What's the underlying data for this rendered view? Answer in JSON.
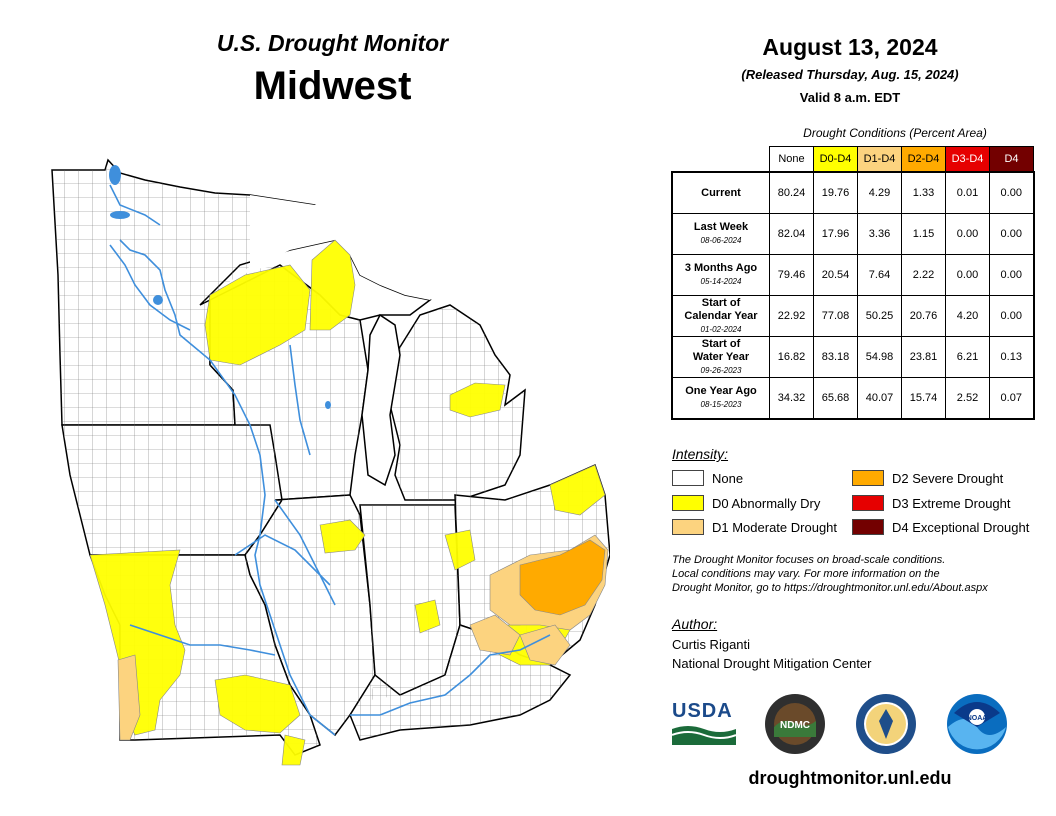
{
  "header": {
    "product": "U.S. Drought Monitor",
    "region": "Midwest",
    "date": "August 13, 2024",
    "released": "(Released Thursday, Aug. 15, 2024)",
    "valid": "Valid 8 a.m. EDT"
  },
  "table": {
    "caption": "Drought Conditions (Percent Area)",
    "columns": [
      "None",
      "D0-D4",
      "D1-D4",
      "D2-D4",
      "D3-D4",
      "D4"
    ],
    "column_colors": [
      "#ffffff",
      "#ffff00",
      "#fcd37f",
      "#ffaa00",
      "#e60000",
      "#730000"
    ],
    "rows": [
      {
        "label": "Current",
        "date": "",
        "values": [
          "80.24",
          "19.76",
          "4.29",
          "1.33",
          "0.01",
          "0.00"
        ]
      },
      {
        "label": "Last Week",
        "date": "08-06-2024",
        "values": [
          "82.04",
          "17.96",
          "3.36",
          "1.15",
          "0.00",
          "0.00"
        ]
      },
      {
        "label": "3 Months Ago",
        "date": "05-14-2024",
        "values": [
          "79.46",
          "20.54",
          "7.64",
          "2.22",
          "0.00",
          "0.00"
        ]
      },
      {
        "label1": "Start of",
        "label": "Calendar Year",
        "date": "01-02-2024",
        "values": [
          "22.92",
          "77.08",
          "50.25",
          "20.76",
          "4.20",
          "0.00"
        ]
      },
      {
        "label1": "Start of",
        "label": "Water Year",
        "date": "09-26-2023",
        "values": [
          "16.82",
          "83.18",
          "54.98",
          "23.81",
          "6.21",
          "0.13"
        ]
      },
      {
        "label": "One Year Ago",
        "date": "08-15-2023",
        "values": [
          "34.32",
          "65.68",
          "40.07",
          "15.74",
          "2.52",
          "0.07"
        ]
      }
    ]
  },
  "legend": {
    "title": "Intensity:",
    "items": [
      {
        "label": "None",
        "color": "#ffffff"
      },
      {
        "label": "D0 Abnormally Dry",
        "color": "#ffff00"
      },
      {
        "label": "D1 Moderate Drought",
        "color": "#fcd37f"
      },
      {
        "label": "D2 Severe Drought",
        "color": "#ffaa00"
      },
      {
        "label": "D3 Extreme Drought",
        "color": "#e60000"
      },
      {
        "label": "D4 Exceptional Drought",
        "color": "#730000"
      }
    ]
  },
  "disclaimer": {
    "line1": "The Drought Monitor focuses on broad-scale conditions.",
    "line2": "Local conditions may vary. For more information on the",
    "line3": "Drought Monitor, go to https://droughtmonitor.unl.edu/About.aspx"
  },
  "author": {
    "title": "Author:",
    "name": "Curtis Riganti",
    "org": "National Drought Mitigation Center"
  },
  "logos": {
    "usda": "USDA",
    "ndmc": "NDMC",
    "noaa": "NOAA"
  },
  "url": "droughtmonitor.unl.edu",
  "map": {
    "water_color": "#3f8fdc",
    "border_color": "#000000"
  }
}
